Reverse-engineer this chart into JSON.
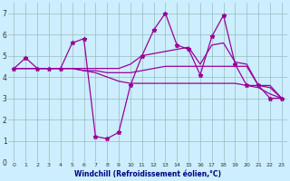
{
  "xlabel": "Windchill (Refroidissement éolien,°C)",
  "background_color": "#cceeff",
  "line_color": "#990099",
  "grid_color": "#99bbbb",
  "xlim": [
    -0.5,
    23.5
  ],
  "ylim": [
    0,
    7.5
  ],
  "xticks": [
    0,
    1,
    2,
    3,
    4,
    5,
    6,
    7,
    8,
    9,
    10,
    11,
    12,
    13,
    14,
    15,
    16,
    17,
    18,
    19,
    20,
    21,
    22,
    23
  ],
  "yticks": [
    0,
    1,
    2,
    3,
    4,
    5,
    6,
    7
  ],
  "series": [
    {
      "y": [
        4.4,
        4.9,
        4.4,
        4.4,
        4.4,
        5.6,
        5.8,
        1.2,
        1.1,
        1.4,
        3.6,
        5.0,
        6.2,
        7.0,
        5.5,
        5.3,
        4.1,
        5.9,
        6.9,
        4.6,
        3.6,
        3.6,
        3.0,
        3.0
      ],
      "marker": true,
      "lw": 0.9
    },
    {
      "y": [
        4.4,
        4.4,
        4.4,
        4.4,
        4.4,
        4.4,
        4.4,
        4.4,
        4.4,
        4.4,
        4.6,
        5.0,
        5.1,
        5.2,
        5.3,
        5.4,
        4.6,
        5.5,
        5.6,
        4.7,
        4.6,
        3.6,
        3.6,
        3.0
      ],
      "marker": false,
      "lw": 0.9
    },
    {
      "y": [
        4.4,
        4.4,
        4.4,
        4.4,
        4.4,
        4.4,
        4.3,
        4.3,
        4.2,
        4.2,
        4.2,
        4.3,
        4.4,
        4.5,
        4.5,
        4.5,
        4.5,
        4.5,
        4.5,
        4.5,
        4.5,
        3.6,
        3.5,
        3.0
      ],
      "marker": false,
      "lw": 0.9
    },
    {
      "y": [
        4.4,
        4.4,
        4.4,
        4.4,
        4.4,
        4.4,
        4.3,
        4.2,
        4.0,
        3.8,
        3.7,
        3.7,
        3.7,
        3.7,
        3.7,
        3.7,
        3.7,
        3.7,
        3.7,
        3.7,
        3.6,
        3.5,
        3.2,
        3.0
      ],
      "marker": false,
      "lw": 0.9
    }
  ]
}
